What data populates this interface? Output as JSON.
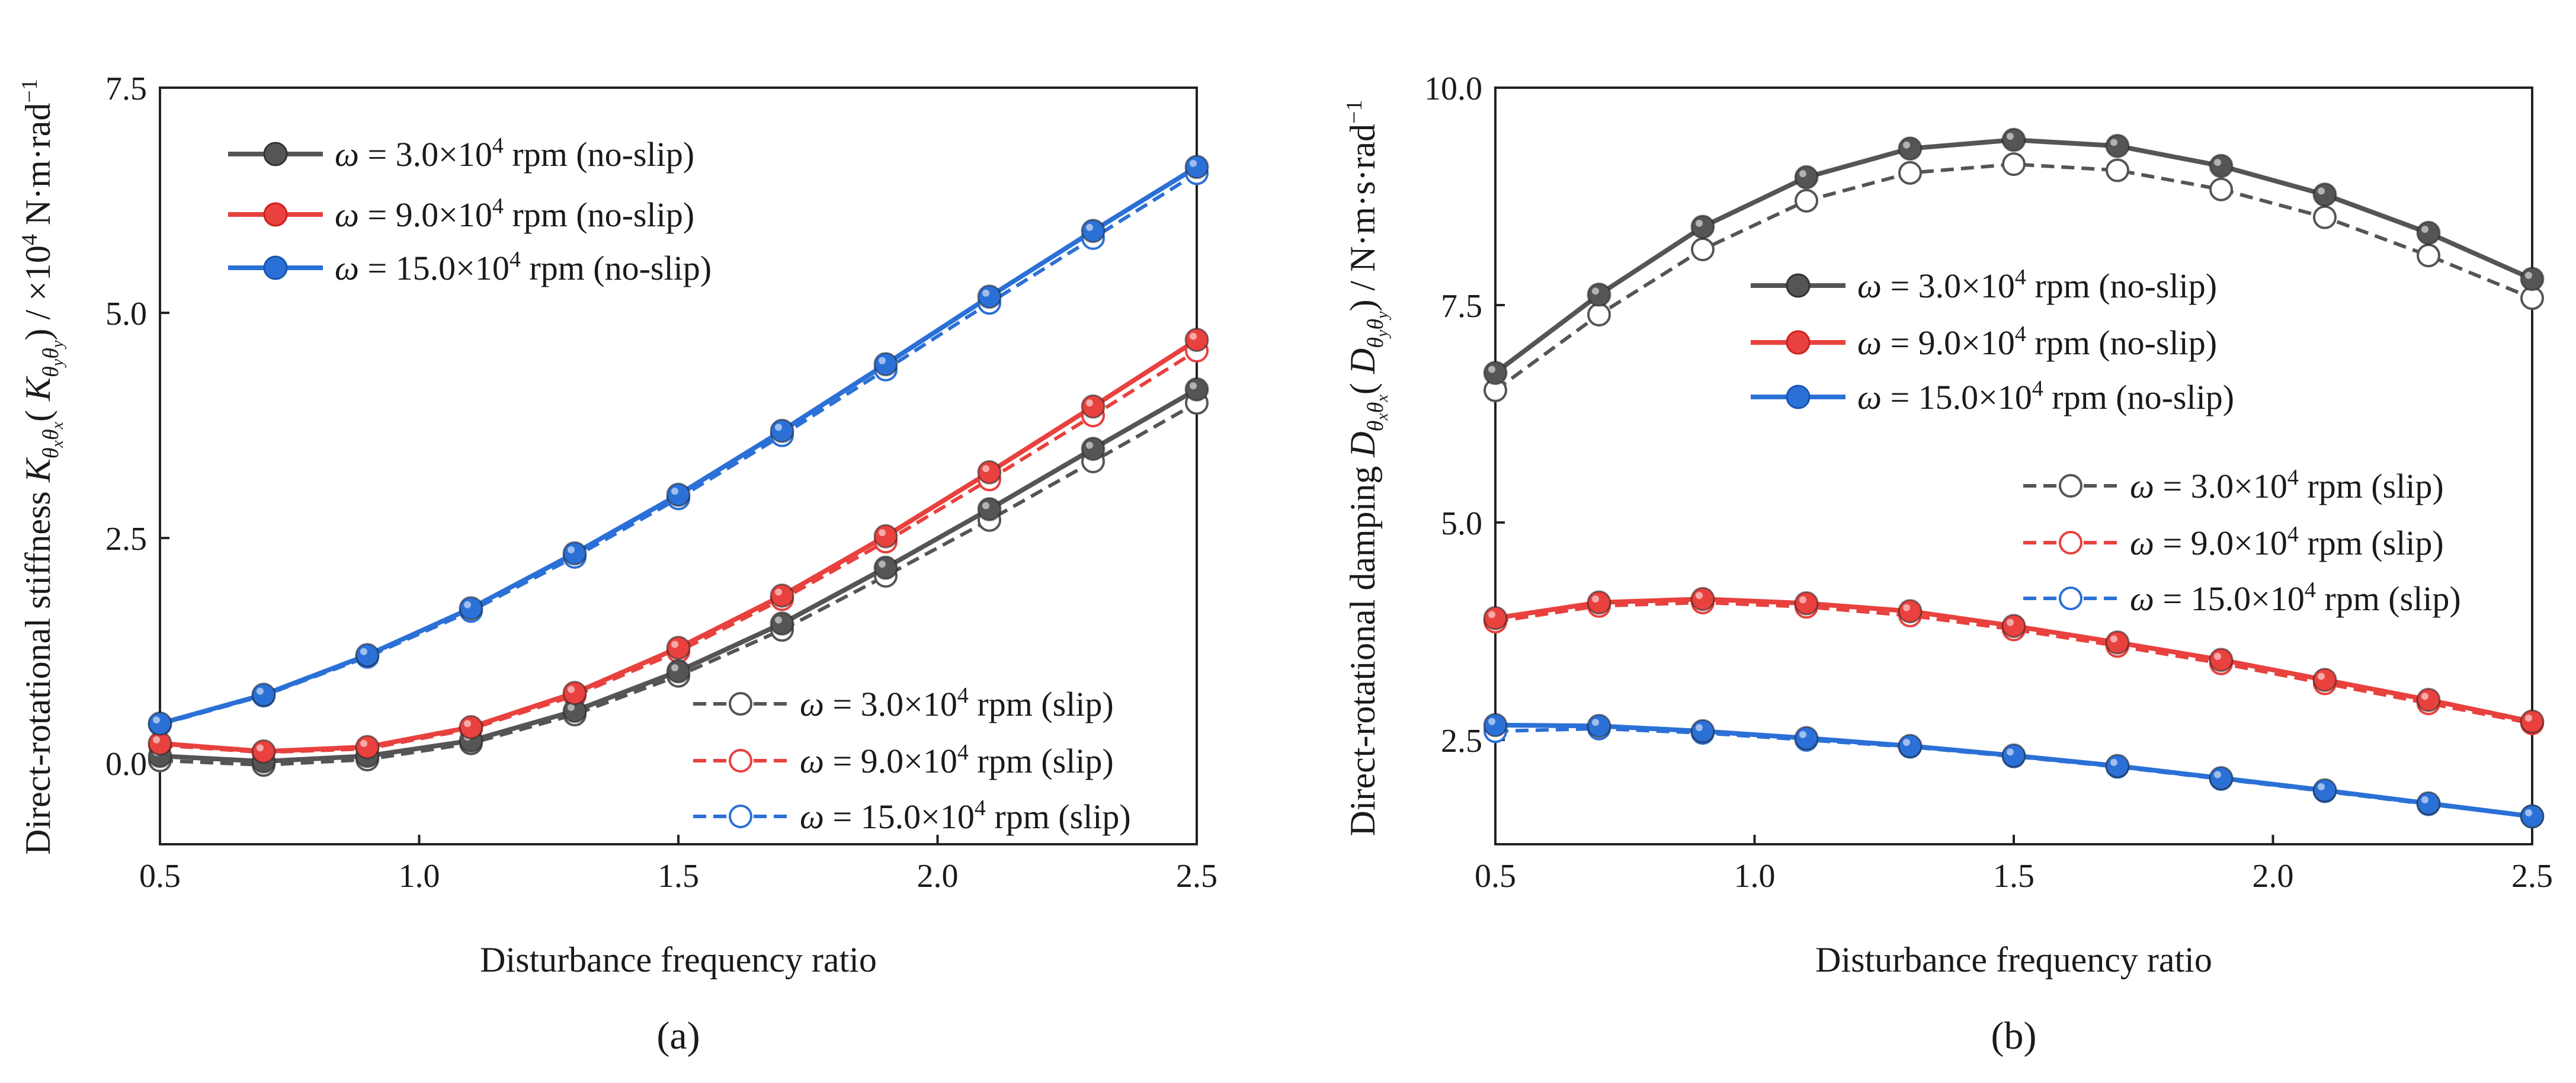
{
  "chart_data": [
    {
      "id": "a",
      "type": "line",
      "caption": "(a)",
      "xlabel": "Disturbance frequency ratio",
      "ylabel": "Direct-rotational stiffness Kθxθx( Kθyθy) / ×10⁴ N·m·rad⁻¹",
      "xlim": [
        0.5,
        2.5
      ],
      "ylim": [
        -0.9,
        7.5
      ],
      "xticks": [
        0.5,
        1.0,
        1.5,
        2.0,
        2.5
      ],
      "yticks": [
        0.0,
        2.5,
        5.0,
        7.5
      ],
      "xtick_labels": [
        "0.5",
        "1.0",
        "1.5",
        "2.0",
        "2.5"
      ],
      "ytick_labels": [
        "0.0",
        "2.5",
        "5.0",
        "7.5"
      ],
      "x": [
        0.5,
        0.7,
        0.9,
        1.1,
        1.3,
        1.5,
        1.7,
        1.9,
        2.1,
        2.3,
        2.5
      ],
      "series": [
        {
          "name": "ω = 3.0×10⁴ rpm (no-slip)",
          "color": "#555555",
          "dashed": false,
          "marker": "filled",
          "values": [
            0.08,
            0.02,
            0.08,
            0.25,
            0.58,
            1.02,
            1.55,
            2.17,
            2.82,
            3.49,
            4.15
          ]
        },
        {
          "name": "ω = 9.0×10⁴ rpm (no-slip)",
          "color": "#e8413e",
          "dashed": false,
          "marker": "filled",
          "values": [
            0.22,
            0.13,
            0.18,
            0.4,
            0.78,
            1.28,
            1.86,
            2.52,
            3.23,
            3.96,
            4.7
          ]
        },
        {
          "name": "ω = 15.0×10⁴ rpm (no-slip)",
          "color": "#2b70d6",
          "dashed": false,
          "marker": "filled",
          "values": [
            0.44,
            0.76,
            1.2,
            1.72,
            2.33,
            2.98,
            3.69,
            4.43,
            5.18,
            5.91,
            6.62
          ]
        },
        {
          "name": "ω = 3.0×10⁴ rpm (slip)",
          "color": "#555555",
          "dashed": true,
          "marker": "open",
          "values": [
            0.03,
            -0.02,
            0.04,
            0.22,
            0.54,
            0.97,
            1.48,
            2.08,
            2.7,
            3.35,
            4.0
          ]
        },
        {
          "name": "ω = 9.0×10⁴ rpm (slip)",
          "color": "#e8413e",
          "dashed": true,
          "marker": "open",
          "values": [
            0.2,
            0.12,
            0.16,
            0.38,
            0.75,
            1.24,
            1.82,
            2.46,
            3.15,
            3.86,
            4.58
          ]
        },
        {
          "name": "ω = 15.0×10⁴ rpm (slip)",
          "color": "#2b70d6",
          "dashed": true,
          "marker": "open",
          "values": [
            0.43,
            0.75,
            1.18,
            1.69,
            2.29,
            2.94,
            3.64,
            4.37,
            5.11,
            5.83,
            6.55
          ]
        }
      ]
    },
    {
      "id": "b",
      "type": "line",
      "caption": "(b)",
      "xlabel": "Disturbance frequency ratio",
      "ylabel": "Direct-rotational damping Dθxθx( Dθyθy) / N·m·s·rad⁻¹",
      "xlim": [
        0.5,
        2.5
      ],
      "ylim": [
        1.3,
        10.0
      ],
      "xticks": [
        0.5,
        1.0,
        1.5,
        2.0,
        2.5
      ],
      "yticks": [
        2.5,
        5.0,
        7.5,
        10.0
      ],
      "xtick_labels": [
        "0.5",
        "1.0",
        "1.5",
        "2.0",
        "2.5"
      ],
      "ytick_labels": [
        "2.5",
        "5.0",
        "7.5",
        "10.0"
      ],
      "x": [
        0.5,
        0.7,
        0.9,
        1.1,
        1.3,
        1.5,
        1.7,
        1.9,
        2.1,
        2.3,
        2.5
      ],
      "series": [
        {
          "name": "ω = 3.0×10⁴ rpm (no-slip)",
          "color": "#555555",
          "dashed": false,
          "marker": "filled",
          "values": [
            6.72,
            7.62,
            8.4,
            8.97,
            9.3,
            9.4,
            9.33,
            9.1,
            8.77,
            8.33,
            7.8
          ]
        },
        {
          "name": "ω = 9.0×10⁴ rpm (no-slip)",
          "color": "#e8413e",
          "dashed": false,
          "marker": "filled",
          "values": [
            3.9,
            4.08,
            4.12,
            4.07,
            3.98,
            3.81,
            3.62,
            3.42,
            3.19,
            2.96,
            2.71
          ]
        },
        {
          "name": "ω = 15.0×10⁴ rpm (no-slip)",
          "color": "#2b70d6",
          "dashed": false,
          "marker": "filled",
          "values": [
            2.67,
            2.66,
            2.6,
            2.52,
            2.43,
            2.32,
            2.2,
            2.06,
            1.92,
            1.77,
            1.62
          ]
        },
        {
          "name": "ω = 3.0×10⁴ rpm (slip)",
          "color": "#555555",
          "dashed": true,
          "marker": "open",
          "values": [
            6.52,
            7.39,
            8.14,
            8.7,
            9.02,
            9.12,
            9.05,
            8.83,
            8.51,
            8.07,
            7.58
          ]
        },
        {
          "name": "ω = 9.0×10⁴ rpm (slip)",
          "color": "#e8413e",
          "dashed": true,
          "marker": "open",
          "values": [
            3.86,
            4.04,
            4.08,
            4.03,
            3.93,
            3.77,
            3.58,
            3.38,
            3.15,
            2.92,
            2.69
          ]
        },
        {
          "name": "ω = 15.0×10⁴ rpm (slip)",
          "color": "#2b70d6",
          "dashed": true,
          "marker": "open",
          "values": [
            2.6,
            2.63,
            2.58,
            2.5,
            2.42,
            2.31,
            2.19,
            2.05,
            1.91,
            1.76,
            1.62
          ]
        }
      ]
    }
  ]
}
